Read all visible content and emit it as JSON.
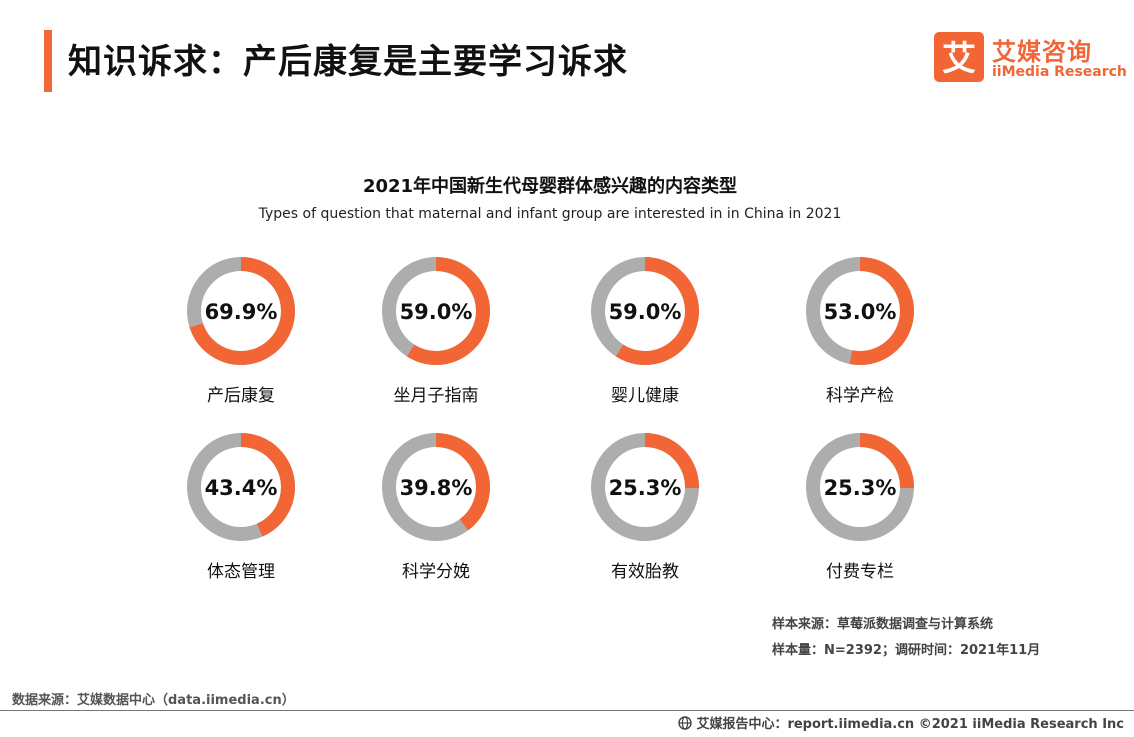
{
  "page": {
    "title": "知识诉求：产后康复是主要学习诉求"
  },
  "logo": {
    "name_cn": "艾媒咨询",
    "name_en": "iiMedia Research",
    "mark_char": "艾"
  },
  "colors": {
    "accent": "#f26535",
    "ring_rest": "#adadad"
  },
  "chart_data": {
    "type": "pie",
    "title": "2021年中国新生代母婴群体感兴趣的内容类型",
    "subtitle": "Types of question that maternal and infant group are interested in in China in 2021",
    "unit": "%",
    "items": [
      {
        "label": "产后康复",
        "value": 69.9
      },
      {
        "label": "坐月子指南",
        "value": 59.0
      },
      {
        "label": "婴儿健康",
        "value": 59.0
      },
      {
        "label": "科学产检",
        "value": 53.0
      },
      {
        "label": "体态管理",
        "value": 43.4
      },
      {
        "label": "科学分娩",
        "value": 39.8
      },
      {
        "label": "有效胎教",
        "value": 25.3
      },
      {
        "label": "付费专栏",
        "value": 25.3
      }
    ]
  },
  "source": {
    "line1": "样本来源：草莓派数据调查与计算系统",
    "line2": "样本量：N=2392；调研时间：2021年11月"
  },
  "footer": {
    "data_source": "数据来源：艾媒数据中心（data.iimedia.cn）",
    "report_center": "艾媒报告中心：report.iimedia.cn  ©2021  iiMedia Research  Inc"
  }
}
